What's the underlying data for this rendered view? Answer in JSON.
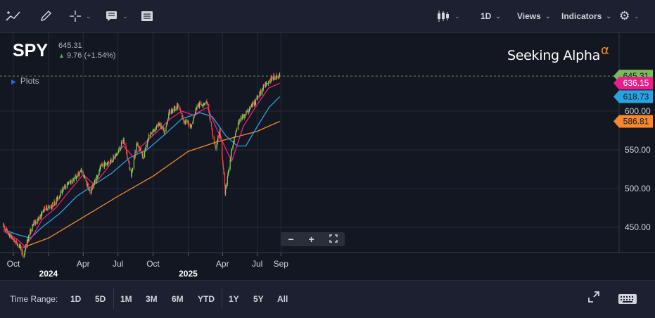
{
  "toolbar": {
    "views_label": "Views",
    "indicators_label": "Indicators",
    "interval_label": "1D"
  },
  "symbol": {
    "ticker": "SPY",
    "price": "645.31",
    "change": "9.76 (+1.54%)"
  },
  "plots_label": "Plots",
  "logo": {
    "text": "Seeking Alpha",
    "mark": "α"
  },
  "zoom": {
    "minus": "−",
    "plus": "+"
  },
  "bottom": {
    "time_range_label": "Time Range:",
    "ranges": [
      "1D",
      "5D",
      "1M",
      "3M",
      "6M",
      "YTD",
      "1Y",
      "5Y",
      "All"
    ]
  },
  "colors": {
    "background": "#131722",
    "grid": "#262b38",
    "up_candle": "#8fce59",
    "down_candle": "#f24a4a",
    "ma_fast": "#e91e8c",
    "ma_mid": "#29a3e0",
    "ma_slow": "#f5892b",
    "last_price": "#7cba5a"
  },
  "chart_data": {
    "type": "line",
    "title": "",
    "xlabel": "",
    "ylabel": "",
    "ylim": [
      425,
      690
    ],
    "x_ticks": [
      {
        "label": "Oct",
        "date": "2023-10-01",
        "bold": false
      },
      {
        "label": "2024",
        "date": "2024-01-01",
        "bold": true
      },
      {
        "label": "Apr",
        "date": "2024-04-01",
        "bold": false
      },
      {
        "label": "Jul",
        "date": "2024-07-01",
        "bold": false
      },
      {
        "label": "Oct",
        "date": "2024-10-01",
        "bold": false
      },
      {
        "label": "2025",
        "date": "2025-01-01",
        "bold": true
      },
      {
        "label": "Apr",
        "date": "2025-04-01",
        "bold": false
      },
      {
        "label": "Jul",
        "date": "2025-07-01",
        "bold": false
      },
      {
        "label": "Sep",
        "date": "2025-09-01",
        "bold": false
      }
    ],
    "y_ticks": [
      450,
      500,
      550,
      600
    ],
    "grid": true,
    "price_points": [
      [
        "2023-09-05",
        452
      ],
      [
        "2023-09-20",
        440
      ],
      [
        "2023-10-05",
        432
      ],
      [
        "2023-10-20",
        424
      ],
      [
        "2023-10-27",
        412
      ],
      [
        "2023-11-10",
        438
      ],
      [
        "2023-11-24",
        456
      ],
      [
        "2023-12-08",
        461
      ],
      [
        "2023-12-22",
        475
      ],
      [
        "2024-01-10",
        477
      ],
      [
        "2024-01-26",
        488
      ],
      [
        "2024-02-09",
        500
      ],
      [
        "2024-02-23",
        507
      ],
      [
        "2024-03-08",
        512
      ],
      [
        "2024-03-28",
        523
      ],
      [
        "2024-04-19",
        495
      ],
      [
        "2024-05-03",
        511
      ],
      [
        "2024-05-20",
        530
      ],
      [
        "2024-06-07",
        534
      ],
      [
        "2024-06-28",
        544
      ],
      [
        "2024-07-16",
        564
      ],
      [
        "2024-08-05",
        517
      ],
      [
        "2024-08-20",
        560
      ],
      [
        "2024-09-06",
        540
      ],
      [
        "2024-09-20",
        568
      ],
      [
        "2024-10-18",
        584
      ],
      [
        "2024-11-01",
        571
      ],
      [
        "2024-11-11",
        598
      ],
      [
        "2024-12-06",
        607
      ],
      [
        "2024-12-20",
        588
      ],
      [
        "2025-01-10",
        581
      ],
      [
        "2025-01-24",
        607
      ],
      [
        "2025-02-19",
        612
      ],
      [
        "2025-03-13",
        551
      ],
      [
        "2025-03-25",
        575
      ],
      [
        "2025-04-08",
        496
      ],
      [
        "2025-04-25",
        550
      ],
      [
        "2025-05-13",
        586
      ],
      [
        "2025-06-06",
        600
      ],
      [
        "2025-06-27",
        614
      ],
      [
        "2025-07-25",
        637
      ],
      [
        "2025-08-15",
        644
      ],
      [
        "2025-08-29",
        645.31
      ]
    ],
    "series": [
      {
        "points": [
          [
            "2023-09-05",
            445
          ],
          [
            "2023-10-10",
            435
          ],
          [
            "2023-10-31",
            425
          ],
          [
            "2023-11-20",
            438
          ],
          [
            "2023-12-15",
            460
          ],
          [
            "2024-01-20",
            475
          ],
          [
            "2024-03-01",
            500
          ],
          [
            "2024-04-01",
            518
          ],
          [
            "2024-04-30",
            505
          ],
          [
            "2024-06-01",
            525
          ],
          [
            "2024-07-15",
            555
          ],
          [
            "2024-08-12",
            540
          ],
          [
            "2024-09-01",
            555
          ],
          [
            "2024-10-15",
            575
          ],
          [
            "2024-11-15",
            590
          ],
          [
            "2024-12-15",
            600
          ],
          [
            "2025-01-15",
            595
          ],
          [
            "2025-02-20",
            605
          ],
          [
            "2025-03-25",
            568
          ],
          [
            "2025-04-25",
            535
          ],
          [
            "2025-05-25",
            580
          ],
          [
            "2025-06-30",
            608
          ],
          [
            "2025-07-31",
            630
          ],
          [
            "2025-08-29",
            636
          ]
        ]
      },
      {
        "points": [
          [
            "2023-09-05",
            447
          ],
          [
            "2023-10-15",
            440
          ],
          [
            "2023-11-15",
            436
          ],
          [
            "2023-12-15",
            450
          ],
          [
            "2024-01-31",
            468
          ],
          [
            "2024-03-15",
            490
          ],
          [
            "2024-04-30",
            505
          ],
          [
            "2024-06-15",
            520
          ],
          [
            "2024-08-01",
            540
          ],
          [
            "2024-09-15",
            550
          ],
          [
            "2024-11-01",
            570
          ],
          [
            "2024-12-15",
            590
          ],
          [
            "2025-02-01",
            598
          ],
          [
            "2025-03-05",
            593
          ],
          [
            "2025-04-10",
            568
          ],
          [
            "2025-05-10",
            555
          ],
          [
            "2025-06-01",
            555
          ],
          [
            "2025-07-01",
            580
          ],
          [
            "2025-08-01",
            605
          ],
          [
            "2025-08-29",
            618.73
          ]
        ]
      },
      {
        "points": [
          [
            "2023-10-27",
            424
          ],
          [
            "2024-01-01",
            436
          ],
          [
            "2024-04-01",
            463
          ],
          [
            "2024-07-01",
            490
          ],
          [
            "2024-10-01",
            516
          ],
          [
            "2025-01-01",
            548
          ],
          [
            "2025-03-15",
            560
          ],
          [
            "2025-05-01",
            566
          ],
          [
            "2025-07-01",
            574
          ],
          [
            "2025-08-29",
            586.81
          ]
        ]
      }
    ],
    "labels": [
      {
        "value": "645.31",
        "y": 645.31,
        "bg": "#7cba5a"
      },
      {
        "value": "636.15",
        "y": 636.15,
        "bg": "#e91e8c"
      },
      {
        "value": "618.73",
        "y": 618.73,
        "bg": "#29a3e0"
      },
      {
        "value": "586.81",
        "y": 586.81,
        "bg": "#f5892b"
      }
    ]
  }
}
